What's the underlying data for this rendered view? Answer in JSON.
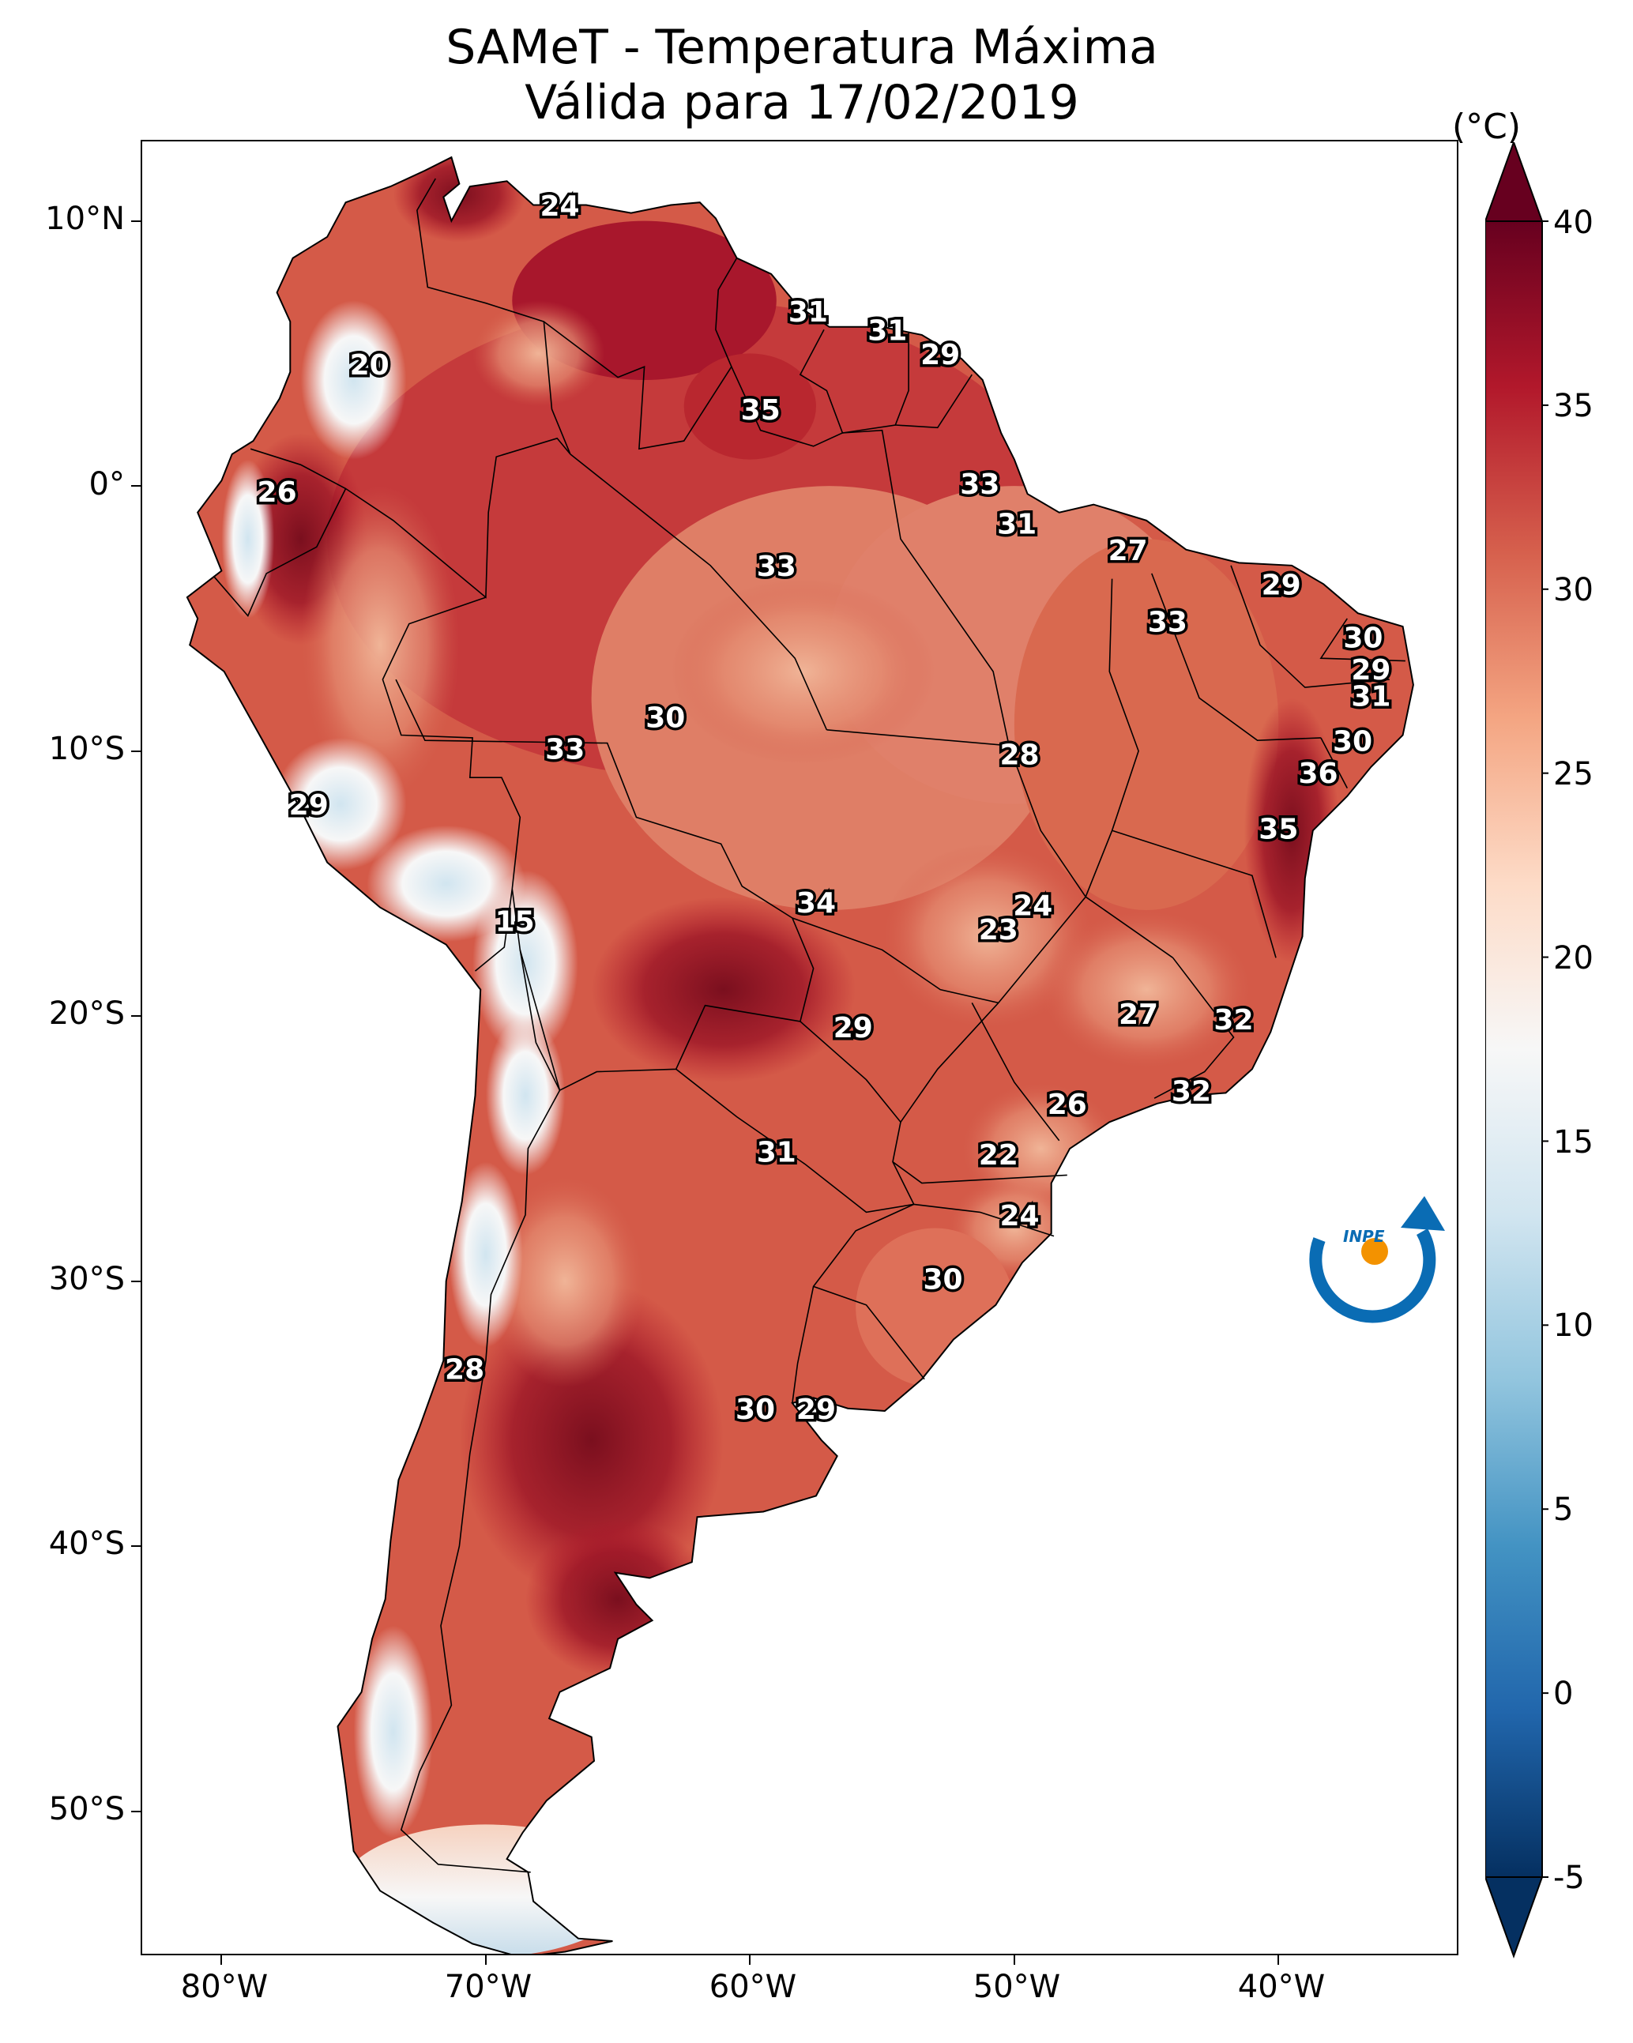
{
  "title": {
    "line1": "SAMeT - Temperatura Máxima",
    "line2": "Válida para 17/02/2019"
  },
  "colorbar": {
    "unit": "(°C)",
    "ticks": [
      "40",
      "35",
      "30",
      "25",
      "20",
      "15",
      "10",
      "5",
      "0",
      "-5"
    ],
    "range": [
      -5,
      40
    ],
    "extend": "both",
    "colormap": "RdBu_r",
    "colors": [
      "#053061",
      "#2166ac",
      "#4393c3",
      "#92c5de",
      "#d1e5f0",
      "#f7f7f7",
      "#fddbc7",
      "#f4a582",
      "#d6604d",
      "#b2182b",
      "#67001f"
    ]
  },
  "axes": {
    "lat_ticks": [
      "10°N",
      "0°",
      "10°S",
      "20°S",
      "30°S",
      "40°S",
      "50°S"
    ],
    "lon_ticks": [
      "80°W",
      "70°W",
      "60°W",
      "50°W",
      "40°W"
    ]
  },
  "logo": {
    "text": "INPE",
    "colors": [
      "#0a6cb4",
      "#f39200"
    ]
  },
  "station_values": [
    {
      "label": "24",
      "lon": -67.2,
      "lat": 10.5
    },
    {
      "label": "31",
      "lon": -57.8,
      "lat": 6.5
    },
    {
      "label": "31",
      "lon": -54.8,
      "lat": 5.8
    },
    {
      "label": "29",
      "lon": -52.8,
      "lat": 4.9
    },
    {
      "label": "20",
      "lon": -74.4,
      "lat": 4.5
    },
    {
      "label": "35",
      "lon": -59.6,
      "lat": 2.8
    },
    {
      "label": "33",
      "lon": -51.3,
      "lat": 0.0
    },
    {
      "label": "26",
      "lon": -77.9,
      "lat": -0.3
    },
    {
      "label": "31",
      "lon": -49.9,
      "lat": -1.5
    },
    {
      "label": "27",
      "lon": -45.7,
      "lat": -2.5
    },
    {
      "label": "33",
      "lon": -59.0,
      "lat": -3.1
    },
    {
      "label": "29",
      "lon": -39.9,
      "lat": -3.8
    },
    {
      "label": "33",
      "lon": -44.2,
      "lat": -5.2
    },
    {
      "label": "30",
      "lon": -36.8,
      "lat": -5.8
    },
    {
      "label": "29",
      "lon": -36.5,
      "lat": -7.0
    },
    {
      "label": "31",
      "lon": -36.5,
      "lat": -8.0
    },
    {
      "label": "30",
      "lon": -63.2,
      "lat": -8.8
    },
    {
      "label": "30",
      "lon": -37.2,
      "lat": -9.7
    },
    {
      "label": "33",
      "lon": -67.0,
      "lat": -10.0
    },
    {
      "label": "28",
      "lon": -49.8,
      "lat": -10.2
    },
    {
      "label": "36",
      "lon": -38.5,
      "lat": -10.9
    },
    {
      "label": "29",
      "lon": -76.7,
      "lat": -12.1
    },
    {
      "label": "35",
      "lon": -40.0,
      "lat": -13.0
    },
    {
      "label": "34",
      "lon": -57.5,
      "lat": -15.8
    },
    {
      "label": "24",
      "lon": -49.3,
      "lat": -15.9
    },
    {
      "label": "15",
      "lon": -68.9,
      "lat": -16.5
    },
    {
      "label": "23",
      "lon": -50.6,
      "lat": -16.8
    },
    {
      "label": "27",
      "lon": -45.3,
      "lat": -20.0
    },
    {
      "label": "29",
      "lon": -56.1,
      "lat": -20.5
    },
    {
      "label": "32",
      "lon": -41.7,
      "lat": -20.2
    },
    {
      "label": "32",
      "lon": -43.3,
      "lat": -22.9
    },
    {
      "label": "26",
      "lon": -48.0,
      "lat": -23.4
    },
    {
      "label": "31",
      "lon": -59.0,
      "lat": -25.2
    },
    {
      "label": "22",
      "lon": -50.6,
      "lat": -25.3
    },
    {
      "label": "24",
      "lon": -49.8,
      "lat": -27.6
    },
    {
      "label": "30",
      "lon": -52.7,
      "lat": -30.0
    },
    {
      "label": "28",
      "lon": -70.8,
      "lat": -33.4
    },
    {
      "label": "30",
      "lon": -59.8,
      "lat": -34.9
    },
    {
      "label": "29",
      "lon": -57.5,
      "lat": -34.9
    }
  ]
}
